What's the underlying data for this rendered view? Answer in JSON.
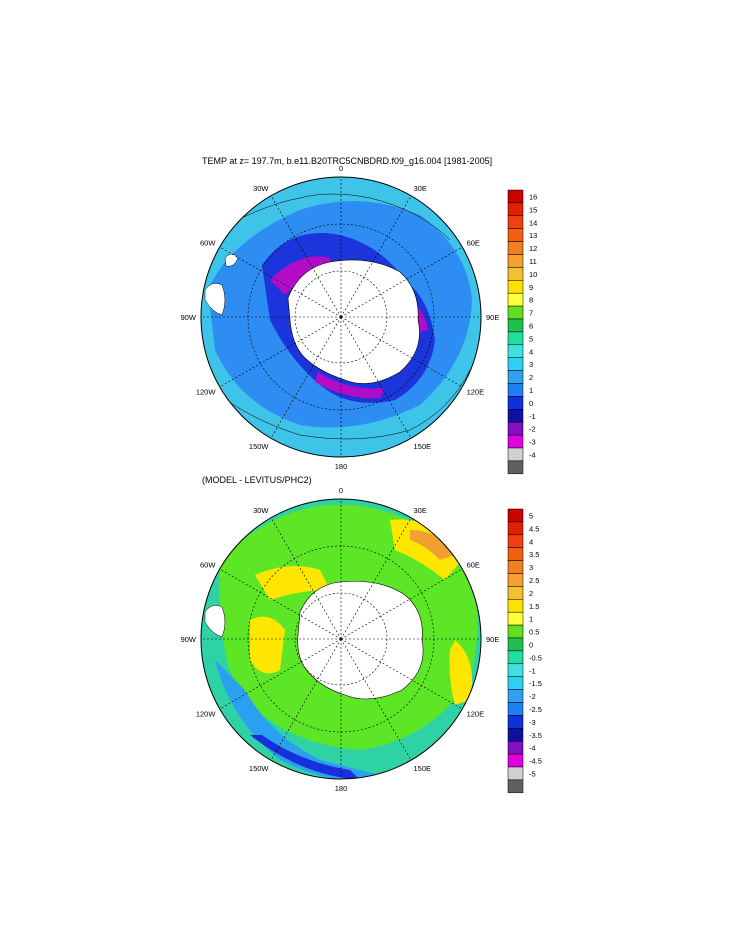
{
  "panels": [
    {
      "title": "TEMP at z= 197.7m, b.e11.B20TRC5CNBDRD.f09_g16.004 [1981-2005]",
      "lon_labels": [
        "0",
        "30E",
        "60E",
        "90E",
        "120E",
        "150E",
        "180",
        "150W",
        "120W",
        "90W",
        "60W",
        "30W"
      ],
      "colorbar": {
        "labels": [
          "16",
          "15",
          "14",
          "13",
          "12",
          "11",
          "10",
          "9",
          "8",
          "7",
          "6",
          "5",
          "4",
          "3",
          "2",
          "1",
          "0",
          "-1",
          "-2",
          "-3",
          "-4"
        ],
        "colors": [
          "#cc0000",
          "#e02000",
          "#f04010",
          "#f06010",
          "#f08020",
          "#f5a030",
          "#f5c030",
          "#ffe000",
          "#ffff40",
          "#60e020",
          "#20c050",
          "#20e0a0",
          "#40e0e0",
          "#30d0f0",
          "#30a0f0",
          "#2080f0",
          "#1030e0",
          "#1010a0",
          "#8010c0",
          "#e000e0",
          "#d0d0d0",
          "#606060"
        ]
      }
    },
    {
      "title": "(MODEL - LEVITUS/PHC2)",
      "lon_labels": [
        "0",
        "30E",
        "60E",
        "90E",
        "120E",
        "150E",
        "180",
        "150W",
        "120W",
        "90W",
        "60W",
        "30W"
      ],
      "colorbar": {
        "labels": [
          "5",
          "4.5",
          "4",
          "3.5",
          "3",
          "2.5",
          "2",
          "1.5",
          "1",
          "0.5",
          "0",
          "-0.5",
          "-1",
          "-1.5",
          "-2",
          "-2.5",
          "-3",
          "-3.5",
          "-4",
          "-4.5",
          "-5"
        ],
        "colors": [
          "#cc0000",
          "#e02000",
          "#f04010",
          "#f06010",
          "#f08020",
          "#f5a030",
          "#f5c030",
          "#ffe000",
          "#ffff40",
          "#60e020",
          "#20c050",
          "#20e0a0",
          "#40e0e0",
          "#30d0f0",
          "#30a0f0",
          "#2080f0",
          "#1030e0",
          "#1010a0",
          "#8010c0",
          "#e000e0",
          "#d0d0d0",
          "#606060"
        ]
      }
    }
  ]
}
